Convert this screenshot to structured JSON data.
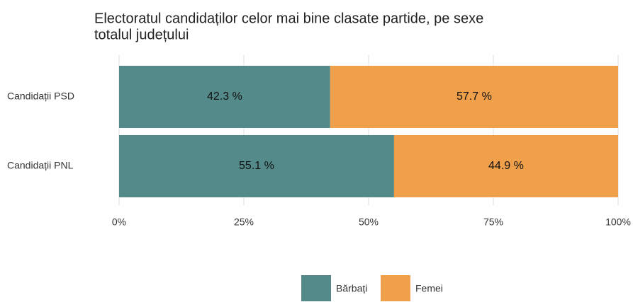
{
  "chart_data": {
    "type": "stacked-barh",
    "title": "Electoratul candidaților celor mai bine clasate partide, pe sexe",
    "subtitle": "totalul județului",
    "categories": [
      "Candidații PSD",
      "Candidații PNL"
    ],
    "series": [
      {
        "name": "Bărbați",
        "color": "#558a8a",
        "values": [
          42.3,
          55.1
        ],
        "value_labels": [
          "42.3 %",
          "55.1 %"
        ]
      },
      {
        "name": "Femei",
        "color": "#f0a04b",
        "values": [
          57.7,
          44.9
        ],
        "value_labels": [
          "57.7 %",
          "44.9 %"
        ]
      }
    ],
    "xlim": [
      0,
      100
    ],
    "xticks": [
      {
        "value": 0,
        "label": "0%"
      },
      {
        "value": 25,
        "label": "25%"
      },
      {
        "value": 50,
        "label": "50%"
      },
      {
        "value": 75,
        "label": "75%"
      },
      {
        "value": 100,
        "label": "100%"
      }
    ],
    "grid": true,
    "legend": "bottom"
  }
}
